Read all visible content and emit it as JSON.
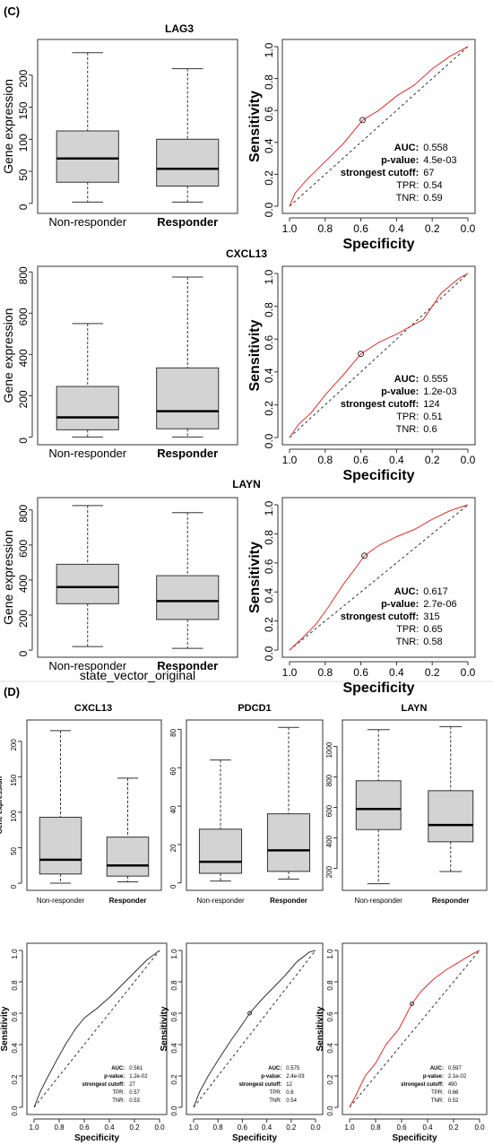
{
  "panel_c_label": "(C)",
  "panel_d_label": "(D)",
  "chart_data": [
    {
      "id": "C-LAG3-box",
      "type": "box",
      "title": "LAG3",
      "ylabel": "Gene expression",
      "ylim": [
        -10,
        250
      ],
      "yticks": [
        0,
        50,
        100,
        150,
        200
      ],
      "categories": [
        "Non-responder",
        "Responder"
      ],
      "boxes": [
        {
          "min": 2,
          "q1": 33,
          "median": 70,
          "q3": 113,
          "max": 235
        },
        {
          "min": 2,
          "q1": 27,
          "median": 54,
          "q3": 100,
          "max": 210
        }
      ]
    },
    {
      "id": "C-LAG3-roc",
      "type": "line",
      "xlabel": "Specificity",
      "ylabel": "Sensitivity",
      "xticks": [
        "1.0",
        "0.8",
        "0.6",
        "0.4",
        "0.2",
        "0.0"
      ],
      "yticks": [
        "0.0",
        "0.2",
        "0.4",
        "0.6",
        "0.8",
        "1.0"
      ],
      "curve_color": "#d9302b",
      "cutoff_point": [
        0.59,
        0.54
      ],
      "series": [
        {
          "x": [
            1.0,
            0.97,
            0.9,
            0.8,
            0.7,
            0.59,
            0.5,
            0.4,
            0.3,
            0.2,
            0.1,
            0.0
          ],
          "y": [
            0.0,
            0.08,
            0.17,
            0.28,
            0.39,
            0.54,
            0.6,
            0.69,
            0.76,
            0.86,
            0.94,
            1.0
          ]
        }
      ],
      "stats": [
        [
          "AUC:",
          "0.558"
        ],
        [
          "p-value:",
          "4.5e-03"
        ],
        [
          "strongest cutoff:",
          "67"
        ],
        [
          "TPR:",
          "0.54"
        ],
        [
          "TNR:",
          "0.59"
        ]
      ]
    },
    {
      "id": "C-CXCL13-box",
      "type": "box",
      "title": "CXCL13",
      "ylabel": "Gene expression",
      "ylim": [
        -20,
        810
      ],
      "yticks": [
        0,
        200,
        400,
        600,
        800
      ],
      "categories": [
        "Non-responder",
        "Responder"
      ],
      "boxes": [
        {
          "min": 0,
          "q1": 35,
          "median": 95,
          "q3": 245,
          "max": 550
        },
        {
          "min": 0,
          "q1": 40,
          "median": 125,
          "q3": 335,
          "max": 775
        }
      ]
    },
    {
      "id": "C-CXCL13-roc",
      "type": "line",
      "xlabel": "Specificity",
      "ylabel": "Sensitivity",
      "xticks": [
        "1.0",
        "0.8",
        "0.6",
        "0.4",
        "0.2",
        "0.0"
      ],
      "yticks": [
        "0.0",
        "0.2",
        "0.4",
        "0.6",
        "0.8",
        "1.0"
      ],
      "curve_color": "#d9302b",
      "cutoff_point": [
        0.6,
        0.51
      ],
      "series": [
        {
          "x": [
            1.0,
            0.95,
            0.88,
            0.8,
            0.7,
            0.6,
            0.5,
            0.4,
            0.3,
            0.25,
            0.15,
            0.05,
            0.0
          ],
          "y": [
            0.0,
            0.08,
            0.15,
            0.26,
            0.38,
            0.51,
            0.58,
            0.63,
            0.69,
            0.72,
            0.88,
            0.97,
            1.0
          ]
        }
      ],
      "stats": [
        [
          "AUC:",
          "0.555"
        ],
        [
          "p-value:",
          "1.2e-03"
        ],
        [
          "strongest cutoff:",
          "124"
        ],
        [
          "TPR:",
          "0.51"
        ],
        [
          "TNR:",
          "0.6"
        ]
      ]
    },
    {
      "id": "C-LAYN-box",
      "type": "box",
      "title": "LAYN",
      "ylabel": "Gene expression",
      "xlabel": "state_vector_original",
      "ylim": [
        -20,
        850
      ],
      "yticks": [
        0,
        200,
        400,
        600,
        800
      ],
      "categories": [
        "Non-responder",
        "Responder"
      ],
      "boxes": [
        {
          "min": 20,
          "q1": 265,
          "median": 360,
          "q3": 490,
          "max": 825
        },
        {
          "min": 10,
          "q1": 175,
          "median": 280,
          "q3": 425,
          "max": 785
        }
      ]
    },
    {
      "id": "C-LAYN-roc",
      "type": "line",
      "xlabel": "Specificity",
      "ylabel": "Sensitivity",
      "xticks": [
        "1.0",
        "0.8",
        "0.6",
        "0.4",
        "0.2",
        "0.0"
      ],
      "yticks": [
        "0.0",
        "0.2",
        "0.4",
        "0.6",
        "0.8",
        "1.0"
      ],
      "curve_color": "#d9302b",
      "cutoff_point": [
        0.58,
        0.65
      ],
      "series": [
        {
          "x": [
            1.0,
            0.93,
            0.85,
            0.78,
            0.7,
            0.62,
            0.58,
            0.5,
            0.4,
            0.3,
            0.2,
            0.1,
            0.0
          ],
          "y": [
            0.0,
            0.08,
            0.18,
            0.3,
            0.45,
            0.58,
            0.65,
            0.72,
            0.78,
            0.83,
            0.9,
            0.96,
            1.0
          ]
        }
      ],
      "stats": [
        [
          "AUC:",
          "0.617"
        ],
        [
          "p-value:",
          "2.7e-06"
        ],
        [
          "strongest cutoff:",
          "315"
        ],
        [
          "TPR:",
          "0.65"
        ],
        [
          "TNR:",
          "0.58"
        ]
      ]
    },
    {
      "id": "D-CXCL13-box",
      "type": "box",
      "title": "CXCL13",
      "ylabel": "Gene expression",
      "ylim": [
        -5,
        225
      ],
      "yticks": [
        0,
        50,
        100,
        150,
        200
      ],
      "categories": [
        "Non-responder",
        "Responder"
      ],
      "boxes": [
        {
          "min": 0,
          "q1": 13,
          "median": 33,
          "q3": 93,
          "max": 215
        },
        {
          "min": 2,
          "q1": 10,
          "median": 25,
          "q3": 65,
          "max": 148
        }
      ]
    },
    {
      "id": "D-PDCD1-box",
      "type": "box",
      "title": "PDCD1",
      "ylim": [
        -2,
        83
      ],
      "yticks": [
        0,
        20,
        40,
        60,
        80
      ],
      "categories": [
        "Non-responder",
        "Responder"
      ],
      "boxes": [
        {
          "min": 1,
          "q1": 5,
          "median": 11,
          "q3": 28,
          "max": 64
        },
        {
          "min": 2,
          "q1": 6,
          "median": 17,
          "q3": 36,
          "max": 81
        }
      ]
    },
    {
      "id": "D-LAYN-box",
      "type": "box",
      "title": "LAYN",
      "ylim": [
        80,
        1150
      ],
      "yticks": [
        200,
        400,
        600,
        800,
        1000
      ],
      "categories": [
        "Non-responder",
        "Responder"
      ],
      "boxes": [
        {
          "min": 100,
          "q1": 455,
          "median": 590,
          "q3": 775,
          "max": 1110
        },
        {
          "min": 180,
          "q1": 375,
          "median": 485,
          "q3": 710,
          "max": 1130
        }
      ]
    },
    {
      "id": "D-CXCL13-roc",
      "type": "line",
      "xlabel": "Specificity",
      "ylabel": "Sensitivity",
      "xticks": [
        "1.0",
        "0.8",
        "0.6",
        "0.4",
        "0.2",
        "0.0"
      ],
      "yticks": [
        "0.0",
        "0.2",
        "0.4",
        "0.6",
        "0.8",
        "1.0"
      ],
      "curve_color": "#333333",
      "cutoff_point": null,
      "series": [
        {
          "x": [
            1.0,
            0.95,
            0.9,
            0.82,
            0.75,
            0.67,
            0.6,
            0.5,
            0.4,
            0.3,
            0.2,
            0.1,
            0.0
          ],
          "y": [
            0.0,
            0.1,
            0.18,
            0.3,
            0.4,
            0.5,
            0.57,
            0.63,
            0.7,
            0.78,
            0.86,
            0.94,
            1.0
          ]
        }
      ],
      "stats": [
        [
          "AUC:",
          "0.561"
        ],
        [
          "p-value:",
          "1.2e-02"
        ],
        [
          "strongest cutoff:",
          "27"
        ],
        [
          "TPR:",
          "0.57"
        ],
        [
          "TNR:",
          "0.53"
        ]
      ]
    },
    {
      "id": "D-PDCD1-roc",
      "type": "line",
      "xlabel": "Specificity",
      "ylabel": "Sensitivity",
      "xticks": [
        "1.0",
        "0.8",
        "0.6",
        "0.4",
        "0.2",
        "0.0"
      ],
      "yticks": [
        "0.0",
        "0.2",
        "0.4",
        "0.6",
        "0.8",
        "1.0"
      ],
      "curve_color": "#333333",
      "cutoff_point": [
        0.54,
        0.6
      ],
      "series": [
        {
          "x": [
            1.0,
            0.95,
            0.88,
            0.8,
            0.7,
            0.6,
            0.54,
            0.45,
            0.35,
            0.25,
            0.15,
            0.05,
            0.0
          ],
          "y": [
            0.0,
            0.1,
            0.2,
            0.3,
            0.42,
            0.53,
            0.6,
            0.68,
            0.76,
            0.84,
            0.93,
            0.99,
            1.0
          ]
        }
      ],
      "stats": [
        [
          "AUC:",
          "0.575"
        ],
        [
          "p-value:",
          "2.4e-03"
        ],
        [
          "strongest cutoff:",
          "12"
        ],
        [
          "TPR:",
          "0.6"
        ],
        [
          "TNR:",
          "0.54"
        ]
      ]
    },
    {
      "id": "D-LAYN-roc",
      "type": "line",
      "xlabel": "Specificity",
      "ylabel": "Sensitivity",
      "xticks": [
        "1.0",
        "0.8",
        "0.6",
        "0.4",
        "0.2",
        "0.0"
      ],
      "yticks": [
        "0.0",
        "0.2",
        "0.4",
        "0.6",
        "0.8",
        "1.0"
      ],
      "curve_color": "#d9302b",
      "cutoff_point": [
        0.52,
        0.66
      ],
      "series": [
        {
          "x": [
            1.0,
            0.95,
            0.88,
            0.8,
            0.72,
            0.62,
            0.52,
            0.45,
            0.35,
            0.25,
            0.15,
            0.05,
            0.0
          ],
          "y": [
            0.0,
            0.08,
            0.2,
            0.28,
            0.4,
            0.5,
            0.66,
            0.74,
            0.82,
            0.88,
            0.93,
            0.98,
            1.0
          ]
        }
      ],
      "stats": [
        [
          "AUC:",
          "0.597"
        ],
        [
          "p-value:",
          "2.1e-02"
        ],
        [
          "strongest cutoff:",
          "490"
        ],
        [
          "TPR:",
          "0.66"
        ],
        [
          "TNR:",
          "0.52"
        ]
      ]
    }
  ]
}
